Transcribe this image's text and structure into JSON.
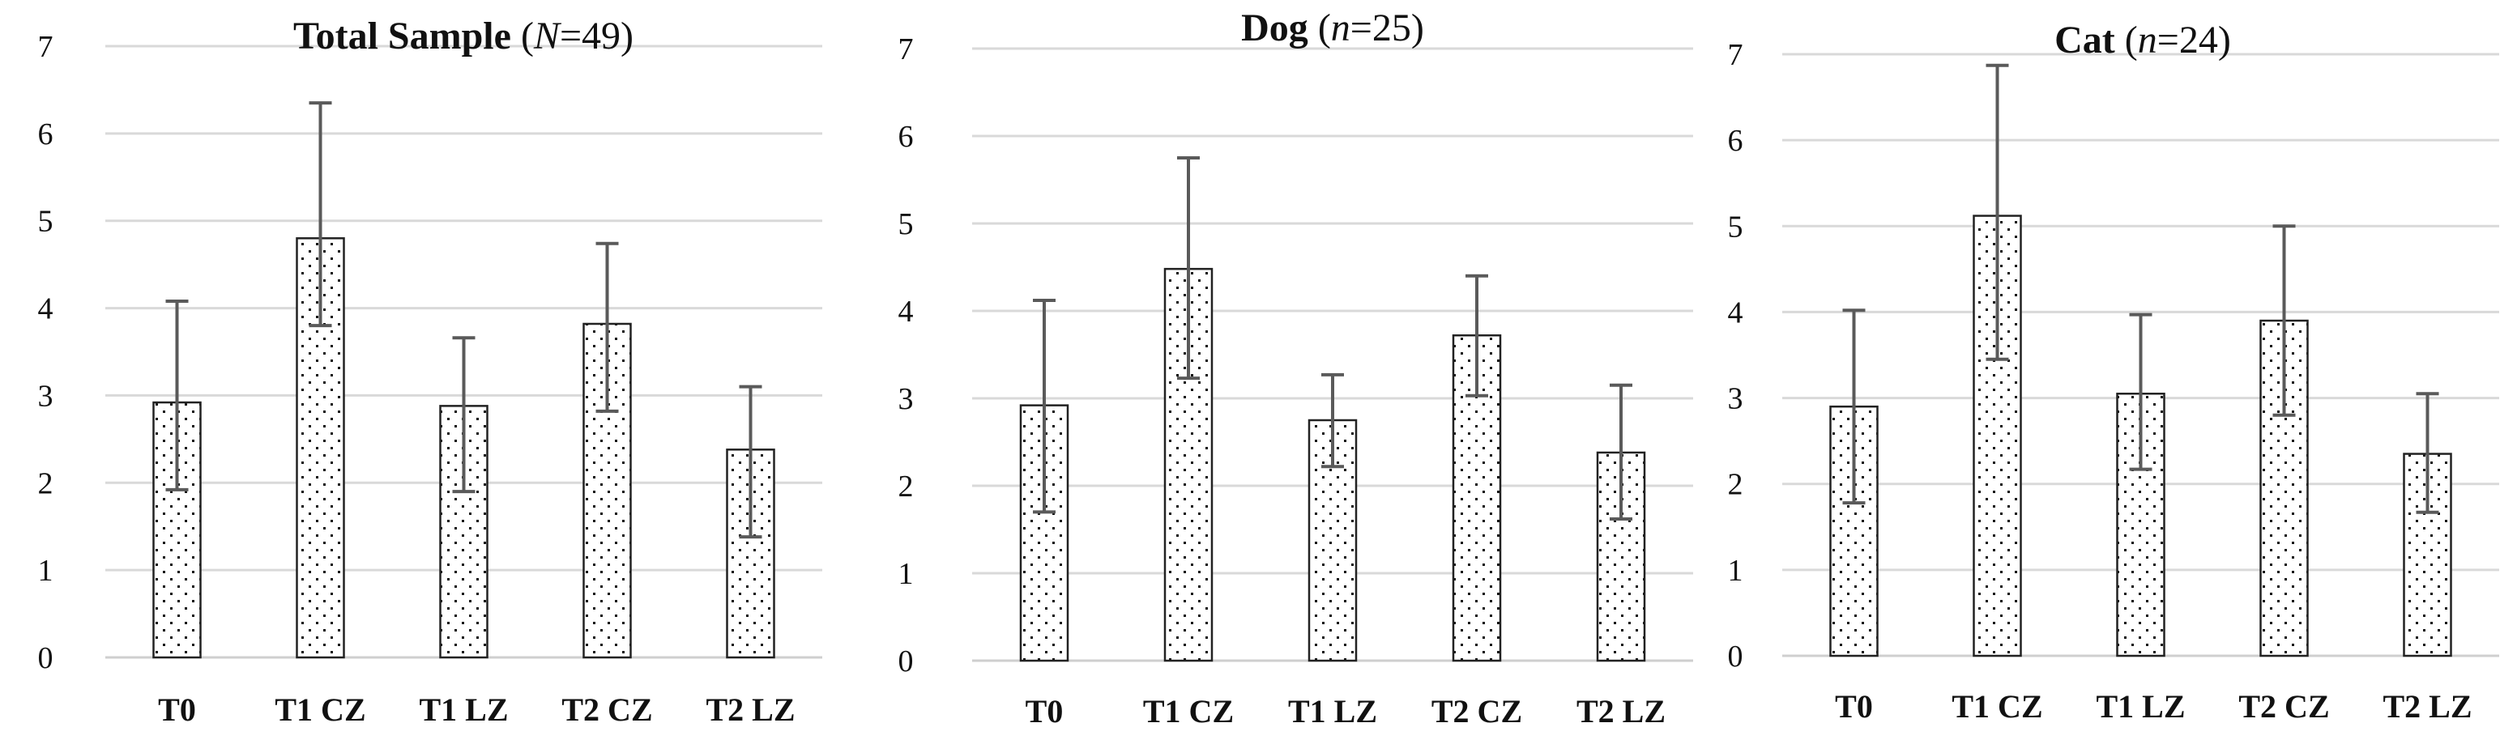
{
  "chart_data": [
    {
      "type": "bar",
      "title": "Total Sample",
      "title_italic": "N",
      "title_suffix": "=49",
      "categories": [
        "T0",
        "T1 CZ",
        "T1 LZ",
        "T2 CZ",
        "T2 LZ"
      ],
      "values": [
        2.92,
        4.8,
        2.88,
        3.82,
        2.38
      ],
      "error_plus": [
        1.16,
        1.55,
        0.78,
        0.92,
        0.72
      ],
      "error_minus": [
        1.0,
        1.0,
        0.98,
        1.0,
        1.0
      ],
      "ylim": [
        0,
        7
      ],
      "yticks": [
        "0",
        "1",
        "2",
        "3",
        "4",
        "5",
        "6",
        "7"
      ],
      "grid": true,
      "xlabel": "",
      "ylabel": ""
    },
    {
      "type": "bar",
      "title": "Dog",
      "title_italic": "n",
      "title_suffix": "=25",
      "categories": [
        "T0",
        "T1 CZ",
        "T1 LZ",
        "T2 CZ",
        "T2 LZ"
      ],
      "values": [
        2.92,
        4.48,
        2.75,
        3.72,
        2.38
      ],
      "error_plus": [
        1.2,
        1.27,
        0.52,
        0.68,
        0.77
      ],
      "error_minus": [
        1.22,
        1.25,
        0.53,
        0.69,
        0.76
      ],
      "ylim": [
        0,
        7
      ],
      "yticks": [
        "0",
        "1",
        "2",
        "3",
        "4",
        "5",
        "6",
        "7"
      ],
      "grid": true,
      "xlabel": "",
      "ylabel": ""
    },
    {
      "type": "bar",
      "title": "Cat",
      "title_italic": "n",
      "title_suffix": "=24",
      "categories": [
        "T0",
        "T1 CZ",
        "T1 LZ",
        "T2 CZ",
        "T2 LZ"
      ],
      "values": [
        2.9,
        5.12,
        3.05,
        3.9,
        2.35
      ],
      "error_plus": [
        1.12,
        1.75,
        0.92,
        1.1,
        0.7
      ],
      "error_minus": [
        1.12,
        1.67,
        0.88,
        1.1,
        0.68
      ],
      "ylim": [
        0,
        7
      ],
      "yticks": [
        "0",
        "1",
        "2",
        "3",
        "4",
        "5",
        "6",
        "7"
      ],
      "grid": true,
      "xlabel": "",
      "ylabel": ""
    }
  ],
  "style": {
    "grid_color": "#d9d9d9",
    "bar_outline": "#222222",
    "bar_fill": "#ffffff",
    "dot_color": "#111111",
    "error_color": "#5a5a5a",
    "axis_color": "#cfcfcf",
    "text_color": "#111111"
  }
}
